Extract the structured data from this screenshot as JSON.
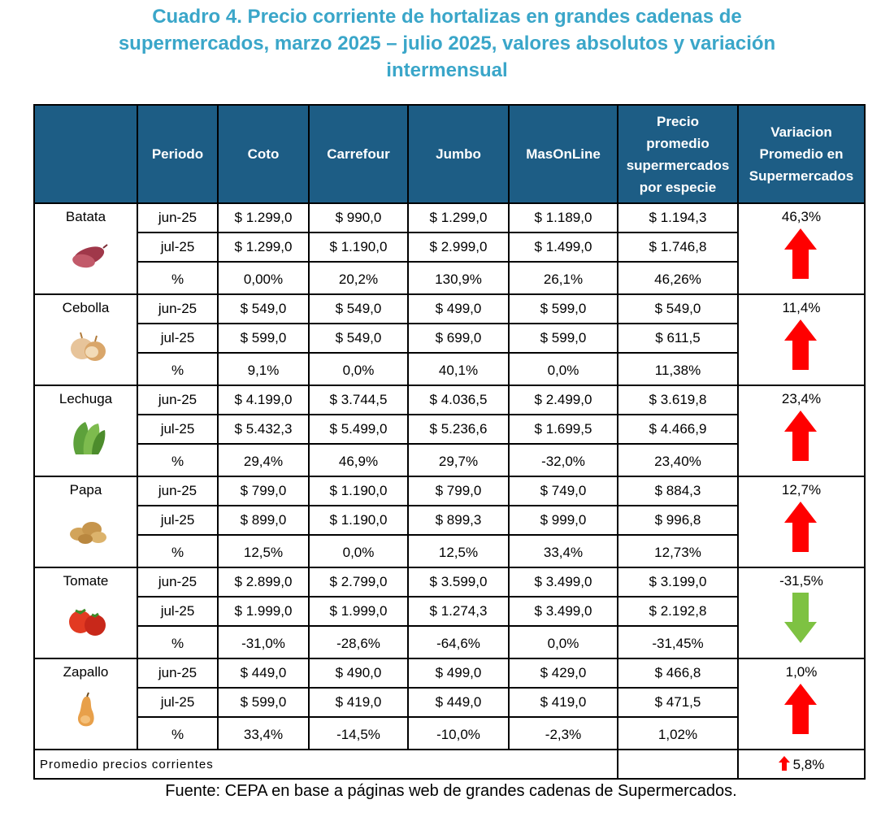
{
  "title": {
    "line1": "Cuadro 4. Precio corriente de hortalizas en grandes cadenas de",
    "line2": "supermercados, marzo 2025 – julio 2025, valores absolutos y variación",
    "line3": "intermensual"
  },
  "headers": {
    "product": "",
    "period": "Periodo",
    "coto": "Coto",
    "carrefour": "Carrefour",
    "jumbo": "Jumbo",
    "masonline": "MasOnLine",
    "avg_l1": "Precio",
    "avg_l2": "promedio",
    "avg_l3": "supermercados",
    "avg_l4": "por especie",
    "var_l1": "Variacion",
    "var_l2": "Promedio en",
    "var_l3": "Supermercados"
  },
  "products": [
    {
      "name": "Batata",
      "icon": "sweet-potato-icon",
      "variation": "46,3%",
      "direction": "up",
      "rows": [
        {
          "period": "jun-25",
          "coto": "$ 1.299,0",
          "carrefour": "$ 990,0",
          "jumbo": "$ 1.299,0",
          "masonline": "$ 1.189,0",
          "avg": "$ 1.194,3"
        },
        {
          "period": "jul-25",
          "coto": "$ 1.299,0",
          "carrefour": "$ 1.190,0",
          "jumbo": "$ 2.999,0",
          "masonline": "$ 1.499,0",
          "avg": "$ 1.746,8"
        },
        {
          "period": "%",
          "coto": "0,00%",
          "carrefour": "20,2%",
          "jumbo": "130,9%",
          "masonline": "26,1%",
          "avg": "46,26%"
        }
      ]
    },
    {
      "name": "Cebolla",
      "icon": "onion-icon",
      "variation": "11,4%",
      "direction": "up",
      "rows": [
        {
          "period": "jun-25",
          "coto": "$ 549,0",
          "carrefour": "$ 549,0",
          "jumbo": "$ 499,0",
          "masonline": "$ 599,0",
          "avg": "$ 549,0"
        },
        {
          "period": "jul-25",
          "coto": "$ 599,0",
          "carrefour": "$ 549,0",
          "jumbo": "$ 699,0",
          "masonline": "$ 599,0",
          "avg": "$ 611,5"
        },
        {
          "period": "%",
          "coto": "9,1%",
          "carrefour": "0,0%",
          "jumbo": "40,1%",
          "masonline": "0,0%",
          "avg": "11,38%"
        }
      ]
    },
    {
      "name": "Lechuga",
      "icon": "lettuce-icon",
      "variation": "23,4%",
      "direction": "up",
      "rows": [
        {
          "period": "jun-25",
          "coto": "$ 4.199,0",
          "carrefour": "$ 3.744,5",
          "jumbo": "$ 4.036,5",
          "masonline": "$ 2.499,0",
          "avg": "$ 3.619,8"
        },
        {
          "period": "jul-25",
          "coto": "$ 5.432,3",
          "carrefour": "$ 5.499,0",
          "jumbo": "$ 5.236,6",
          "masonline": "$ 1.699,5",
          "avg": "$ 4.466,9"
        },
        {
          "period": "%",
          "coto": "29,4%",
          "carrefour": "46,9%",
          "jumbo": "29,7%",
          "masonline": "-32,0%",
          "avg": "23,40%"
        }
      ]
    },
    {
      "name": "Papa",
      "icon": "potato-icon",
      "variation": "12,7%",
      "direction": "up",
      "rows": [
        {
          "period": "jun-25",
          "coto": "$ 799,0",
          "carrefour": "$ 1.190,0",
          "jumbo": "$ 799,0",
          "masonline": "$ 749,0",
          "avg": "$ 884,3"
        },
        {
          "period": "jul-25",
          "coto": "$ 899,0",
          "carrefour": "$ 1.190,0",
          "jumbo": "$ 899,3",
          "masonline": "$ 999,0",
          "avg": "$ 996,8"
        },
        {
          "period": "%",
          "coto": "12,5%",
          "carrefour": "0,0%",
          "jumbo": "12,5%",
          "masonline": "33,4%",
          "avg": "12,73%"
        }
      ]
    },
    {
      "name": "Tomate",
      "icon": "tomato-icon",
      "variation": "-31,5%",
      "direction": "down",
      "rows": [
        {
          "period": "jun-25",
          "coto": "$ 2.899,0",
          "carrefour": "$ 2.799,0",
          "jumbo": "$ 3.599,0",
          "masonline": "$ 3.499,0",
          "avg": "$ 3.199,0"
        },
        {
          "period": "jul-25",
          "coto": "$ 1.999,0",
          "carrefour": "$ 1.999,0",
          "jumbo": "$ 1.274,3",
          "masonline": "$ 3.499,0",
          "avg": "$ 2.192,8"
        },
        {
          "period": "%",
          "coto": "-31,0%",
          "carrefour": "-28,6%",
          "jumbo": "-64,6%",
          "masonline": "0,0%",
          "avg": "-31,45%"
        }
      ]
    },
    {
      "name": "Zapallo",
      "icon": "squash-icon",
      "variation": "1,0%",
      "direction": "up",
      "rows": [
        {
          "period": "jun-25",
          "coto": "$ 449,0",
          "carrefour": "$ 490,0",
          "jumbo": "$ 499,0",
          "masonline": "$ 429,0",
          "avg": "$ 466,8"
        },
        {
          "period": "jul-25",
          "coto": "$ 599,0",
          "carrefour": "$ 419,0",
          "jumbo": "$ 449,0",
          "masonline": "$ 419,0",
          "avg": "$ 471,5"
        },
        {
          "period": "%",
          "coto": "33,4%",
          "carrefour": "-14,5%",
          "jumbo": "-10,0%",
          "masonline": "-2,3%",
          "avg": "1,02%"
        }
      ]
    }
  ],
  "footer_row": {
    "label": "Promedio precios corrientes",
    "avg": "",
    "variation": "5,8%",
    "direction": "up"
  },
  "source": "Fuente: CEPA en base a páginas web de grandes cadenas de Supermercados.",
  "colors": {
    "title": "#3aa6c9",
    "header_bg": "#1d5d85",
    "arrow_up": "#ff0000",
    "arrow_down": "#7ec242"
  }
}
